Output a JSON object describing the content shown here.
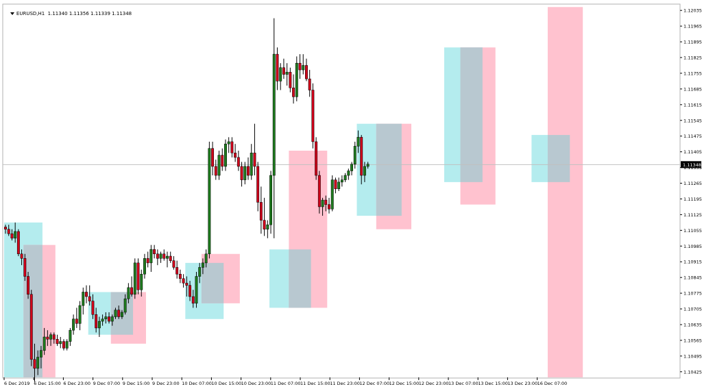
{
  "symbol_line": "EURUSD,H1  1.11340 1.11356 1.11339 1.11348",
  "current_price_label": "1.11348",
  "colors": {
    "bull": "#1e7b1e",
    "bear": "#d0021b",
    "wick": "#000000",
    "cyan_zone": "#b4ecee",
    "pink_zone": "#ffc2cf",
    "overlap_zone": "#b8c8d0"
  },
  "chart_data": {
    "type": "candlestick",
    "ylim": [
      1.104,
      1.1206
    ],
    "y_ticks": [
      "1.12035",
      "1.11965",
      "1.11895",
      "1.11825",
      "1.11755",
      "1.11685",
      "1.11615",
      "1.11545",
      "1.11475",
      "1.11405",
      "1.11335",
      "1.11265",
      "1.11195",
      "1.11125",
      "1.11055",
      "1.10985",
      "1.10915",
      "1.10845",
      "1.10775",
      "1.10705",
      "1.10635",
      "1.10565",
      "1.10495",
      "1.10425"
    ],
    "x_labels": [
      "6 Dec 2019",
      "6 Dec 15:00",
      "6 Dec 23:00",
      "9 Dec 07:00",
      "9 Dec 15:00",
      "9 Dec 23:00",
      "10 Dec 07:00",
      "10 Dec 15:00",
      "10 Dec 23:00",
      "11 Dec 07:00",
      "11 Dec 15:00",
      "11 Dec 23:00",
      "12 Dec 07:00",
      "12 Dec 15:00",
      "12 Dec 23:00",
      "13 Dec 07:00",
      "13 Dec 15:00",
      "13 Dec 23:00",
      "16 Dec 07:00"
    ],
    "candles": [
      [
        1.1107,
        1.1108,
        1.1104,
        1.1106
      ],
      [
        1.1106,
        1.1108,
        1.1103,
        1.1104
      ],
      [
        1.1104,
        1.1106,
        1.1101,
        1.1102
      ],
      [
        1.1102,
        1.1109,
        1.11,
        1.1105
      ],
      [
        1.1105,
        1.1106,
        1.1094,
        1.1095
      ],
      [
        1.1095,
        1.1097,
        1.109,
        1.1093
      ],
      [
        1.1093,
        1.1095,
        1.1083,
        1.1085
      ],
      [
        1.1085,
        1.1087,
        1.1075,
        1.1077
      ],
      [
        1.1077,
        1.1079,
        1.1045,
        1.1048
      ],
      [
        1.1048,
        1.1055,
        1.1038,
        1.1044
      ],
      [
        1.1044,
        1.1052,
        1.1041,
        1.1049
      ],
      [
        1.1049,
        1.1054,
        1.1044,
        1.1052
      ],
      [
        1.1052,
        1.1062,
        1.105,
        1.1058
      ],
      [
        1.1058,
        1.1061,
        1.1054,
        1.1057
      ],
      [
        1.1057,
        1.106,
        1.1054,
        1.1059
      ],
      [
        1.1059,
        1.106,
        1.1055,
        1.1057
      ],
      [
        1.1057,
        1.1059,
        1.1054,
        1.1055
      ],
      [
        1.1055,
        1.1058,
        1.1053,
        1.1056
      ],
      [
        1.1056,
        1.1057,
        1.1052,
        1.1053
      ],
      [
        1.1053,
        1.1057,
        1.1052,
        1.1056
      ],
      [
        1.1056,
        1.1062,
        1.1054,
        1.1061
      ],
      [
        1.1061,
        1.1068,
        1.1059,
        1.1066
      ],
      [
        1.1066,
        1.1071,
        1.1062,
        1.1064
      ],
      [
        1.1064,
        1.1074,
        1.1061,
        1.1072
      ],
      [
        1.1072,
        1.108,
        1.1068,
        1.1078
      ],
      [
        1.1078,
        1.1081,
        1.1073,
        1.1076
      ],
      [
        1.1076,
        1.1081,
        1.1072,
        1.1074
      ],
      [
        1.1074,
        1.1077,
        1.1066,
        1.1068
      ],
      [
        1.1068,
        1.1071,
        1.106,
        1.1062
      ],
      [
        1.1062,
        1.1067,
        1.1058,
        1.1065
      ],
      [
        1.1065,
        1.1068,
        1.1063,
        1.1066
      ],
      [
        1.1066,
        1.1069,
        1.1064,
        1.1067
      ],
      [
        1.1067,
        1.1069,
        1.1064,
        1.1065
      ],
      [
        1.1065,
        1.1068,
        1.1063,
        1.1067
      ],
      [
        1.1067,
        1.1071,
        1.1066,
        1.107
      ],
      [
        1.107,
        1.1072,
        1.1066,
        1.1067
      ],
      [
        1.1067,
        1.107,
        1.1066,
        1.1069
      ],
      [
        1.1069,
        1.1077,
        1.1068,
        1.1075
      ],
      [
        1.1075,
        1.1082,
        1.1073,
        1.108
      ],
      [
        1.108,
        1.1085,
        1.1076,
        1.1077
      ],
      [
        1.1077,
        1.1093,
        1.1075,
        1.1091
      ],
      [
        1.1091,
        1.1093,
        1.1077,
        1.1079
      ],
      [
        1.1079,
        1.1088,
        1.1076,
        1.1086
      ],
      [
        1.1086,
        1.1095,
        1.1084,
        1.1093
      ],
      [
        1.1093,
        1.1096,
        1.1089,
        1.1091
      ],
      [
        1.1091,
        1.1099,
        1.1087,
        1.1097
      ],
      [
        1.1097,
        1.1099,
        1.1093,
        1.1095
      ],
      [
        1.1095,
        1.1097,
        1.109,
        1.1093
      ],
      [
        1.1093,
        1.1096,
        1.1091,
        1.1095
      ],
      [
        1.1095,
        1.1097,
        1.1092,
        1.1093
      ],
      [
        1.1093,
        1.1096,
        1.1089,
        1.1094
      ],
      [
        1.1094,
        1.1096,
        1.1091,
        1.1092
      ],
      [
        1.1092,
        1.1094,
        1.1088,
        1.1089
      ],
      [
        1.1089,
        1.1092,
        1.1084,
        1.1086
      ],
      [
        1.1086,
        1.1088,
        1.1082,
        1.1084
      ],
      [
        1.1084,
        1.1086,
        1.108,
        1.1082
      ],
      [
        1.1082,
        1.1085,
        1.1076,
        1.1081
      ],
      [
        1.1081,
        1.1083,
        1.1074,
        1.1076
      ],
      [
        1.1076,
        1.1079,
        1.1071,
        1.1073
      ],
      [
        1.1073,
        1.1087,
        1.1071,
        1.1085
      ],
      [
        1.1085,
        1.1091,
        1.1082,
        1.1089
      ],
      [
        1.1089,
        1.1093,
        1.1086,
        1.1091
      ],
      [
        1.1091,
        1.1097,
        1.1089,
        1.1095
      ],
      [
        1.1095,
        1.1145,
        1.1093,
        1.1142
      ],
      [
        1.1142,
        1.1145,
        1.113,
        1.1134
      ],
      [
        1.1134,
        1.1137,
        1.1128,
        1.113
      ],
      [
        1.113,
        1.1141,
        1.1128,
        1.1139
      ],
      [
        1.1139,
        1.1142,
        1.1132,
        1.1134
      ],
      [
        1.1134,
        1.1146,
        1.1132,
        1.1144
      ],
      [
        1.1144,
        1.1147,
        1.114,
        1.1145
      ],
      [
        1.1145,
        1.1147,
        1.1138,
        1.114
      ],
      [
        1.114,
        1.1144,
        1.1136,
        1.1138
      ],
      [
        1.1138,
        1.1141,
        1.1132,
        1.1134
      ],
      [
        1.1134,
        1.1136,
        1.1125,
        1.1128
      ],
      [
        1.1128,
        1.1136,
        1.1126,
        1.1134
      ],
      [
        1.1134,
        1.1138,
        1.1128,
        1.113
      ],
      [
        1.113,
        1.1144,
        1.1128,
        1.114
      ],
      [
        1.114,
        1.1153,
        1.113,
        1.1134
      ],
      [
        1.1134,
        1.1136,
        1.1114,
        1.1118
      ],
      [
        1.1118,
        1.1125,
        1.1104,
        1.111
      ],
      [
        1.111,
        1.112,
        1.1103,
        1.1106
      ],
      [
        1.1106,
        1.111,
        1.1102,
        1.1108
      ],
      [
        1.1108,
        1.1132,
        1.1104,
        1.113
      ],
      [
        1.113,
        1.12,
        1.1102,
        1.1184
      ],
      [
        1.1184,
        1.1187,
        1.1168,
        1.1172
      ],
      [
        1.1172,
        1.118,
        1.1168,
        1.1178
      ],
      [
        1.1178,
        1.1182,
        1.1173,
        1.1175
      ],
      [
        1.1175,
        1.118,
        1.117,
        1.1176
      ],
      [
        1.1176,
        1.1178,
        1.1167,
        1.1169
      ],
      [
        1.1169,
        1.1175,
        1.1162,
        1.1165
      ],
      [
        1.1165,
        1.1183,
        1.1163,
        1.118
      ],
      [
        1.118,
        1.1184,
        1.1173,
        1.1177
      ],
      [
        1.1177,
        1.1184,
        1.1175,
        1.1179
      ],
      [
        1.1179,
        1.1182,
        1.1172,
        1.1173
      ],
      [
        1.1173,
        1.1177,
        1.1165,
        1.1168
      ],
      [
        1.1168,
        1.1171,
        1.1142,
        1.1145
      ],
      [
        1.1145,
        1.1147,
        1.1128,
        1.113
      ],
      [
        1.113,
        1.1132,
        1.1113,
        1.1116
      ],
      [
        1.1116,
        1.112,
        1.1112,
        1.1119
      ],
      [
        1.1119,
        1.1121,
        1.1114,
        1.1117
      ],
      [
        1.1117,
        1.112,
        1.1113,
        1.1115
      ],
      [
        1.1115,
        1.113,
        1.1114,
        1.1128
      ],
      [
        1.1128,
        1.1129,
        1.1122,
        1.1124
      ],
      [
        1.1124,
        1.1129,
        1.1123,
        1.1127
      ],
      [
        1.1127,
        1.113,
        1.1125,
        1.1128
      ],
      [
        1.1128,
        1.1131,
        1.1127,
        1.113
      ],
      [
        1.113,
        1.1133,
        1.1128,
        1.1132
      ],
      [
        1.1132,
        1.1136,
        1.113,
        1.1135
      ],
      [
        1.1135,
        1.1145,
        1.1133,
        1.1143
      ],
      [
        1.1143,
        1.115,
        1.114,
        1.1147
      ],
      [
        1.1147,
        1.1148,
        1.1126,
        1.113
      ],
      [
        1.113,
        1.1136,
        1.1127,
        1.1134
      ],
      [
        1.1134,
        1.1136,
        1.1133,
        1.1135
      ]
    ],
    "zones": [
      {
        "color": "cyan",
        "top": 1.1109,
        "bottom": 1.104,
        "x_from": 0,
        "x_to": 11
      },
      {
        "color": "pink",
        "top": 1.1099,
        "bottom": 1.104,
        "x_from": 6,
        "x_to": 15
      },
      {
        "color": "cyan",
        "top": 1.1078,
        "bottom": 1.1059,
        "x_from": 26,
        "x_to": 39
      },
      {
        "color": "pink",
        "top": 1.1078,
        "bottom": 1.1055,
        "x_from": 33,
        "x_to": 43
      },
      {
        "color": "cyan",
        "top": 1.1091,
        "bottom": 1.1066,
        "x_from": 56,
        "x_to": 67
      },
      {
        "color": "pink",
        "top": 1.1095,
        "bottom": 1.1073,
        "x_from": 61,
        "x_to": 72
      },
      {
        "color": "cyan",
        "top": 1.1097,
        "bottom": 1.1071,
        "x_from": 82,
        "x_to": 94
      },
      {
        "color": "pink",
        "top": 1.1141,
        "bottom": 1.1071,
        "x_from": 88,
        "x_to": 99
      },
      {
        "color": "cyan",
        "top": 1.1153,
        "bottom": 1.1112,
        "x_from": 109,
        "x_to": 122
      },
      {
        "color": "pink",
        "top": 1.1153,
        "bottom": 1.1106,
        "x_from": 115,
        "x_to": 125
      },
      {
        "color": "cyan",
        "top": 1.1187,
        "bottom": 1.1127,
        "x_from": 136,
        "x_to": 147
      },
      {
        "color": "pink",
        "top": 1.1187,
        "bottom": 1.1117,
        "x_from": 141,
        "x_to": 151
      },
      {
        "color": "cyan",
        "top": 1.1148,
        "bottom": 1.1127,
        "x_from": 163,
        "x_to": 174
      },
      {
        "color": "pink",
        "top": 1.1205,
        "bottom": 1.104,
        "x_from": 168,
        "x_to": 178
      }
    ],
    "current_price": 1.11348
  }
}
